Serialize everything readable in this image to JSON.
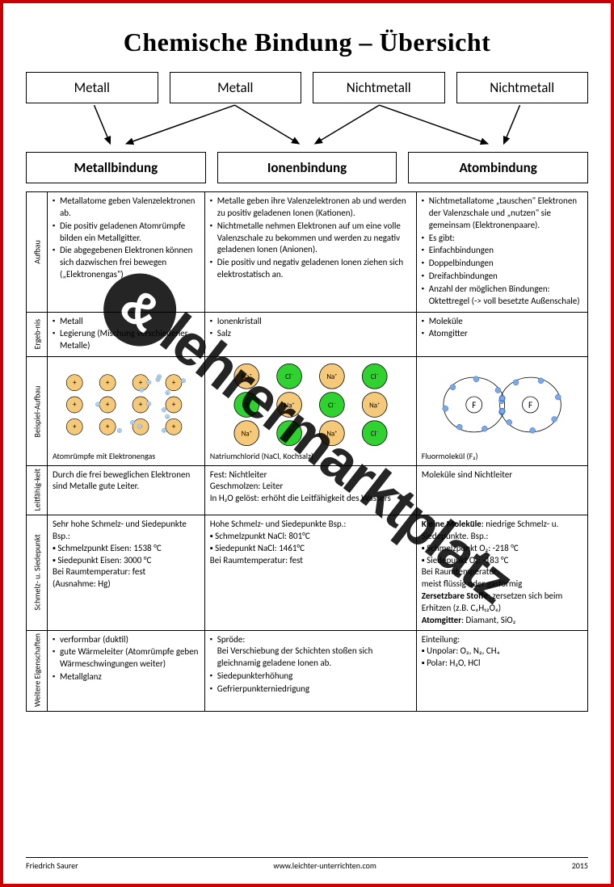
{
  "title": "Chemische Bindung – Übersicht",
  "topBoxes": [
    "Metall",
    "Metall",
    "Nichtmetall",
    "Nichtmetall"
  ],
  "bondBoxes": [
    "Metallbindung",
    "Ionenbindung",
    "Atombindung"
  ],
  "rows": {
    "aufbau": {
      "label": "Aufbau",
      "metall": [
        "Metallatome geben Valenzelektronen ab.",
        "Die positiv geladenen Atomrümpfe bilden ein Metallgitter.",
        "Die abgegebenen Elektronen können sich dazwischen frei bewegen („Elektronengas\")"
      ],
      "ionen": [
        "Metalle geben ihre Valenzelektronen ab und werden zu positiv geladenen Ionen (Kationen).",
        "Nichtmetalle nehmen Elektronen auf um eine volle Valenzschale zu bekommen und werden zu negativ geladenen Ionen (Anionen).",
        "Die positiv und negativ geladenen Ionen ziehen sich elektrostatisch an."
      ],
      "atom": [
        "Nichtmetallatome „tauschen\" Elektronen der Valenzschale und „nutzen\" sie gemeinsam (Elektronenpaare).",
        "Es gibt:",
        "Einfachbindungen",
        "Doppelbindungen",
        "Dreifachbindungen",
        "Anzahl der möglichen Bindungen: Oktettregel (-> voll besetzte Außenschale)"
      ]
    },
    "ergebnis": {
      "label": "Ergeb-nis",
      "metall": [
        "Metall",
        "Legierung (Mischung verschiedener Metalle)"
      ],
      "ionen": [
        "Ionenkristall",
        "Salz"
      ],
      "atom": [
        "Moleküle",
        "Atomgitter"
      ]
    },
    "beispiel": {
      "label": "Beispiel-Aufbau",
      "metall_caption": "Atomrümpfe mit Elektronengas",
      "ionen_caption": "Natriumchlorid (NaCl, Kochsalz)",
      "atom_caption": "Fluormolekül (F₂)",
      "colors": {
        "metal_ion": "#f4c97a",
        "electron": "#b8d4f0",
        "na_ion": "#f4c97a",
        "cl_ion": "#2fd22f",
        "f_electron": "#7aa8e8"
      }
    },
    "leitfaehigkeit": {
      "label": "Leitfähig-keit",
      "metall": "Durch die frei beweglichen Elektronen sind Metalle gute Leiter.",
      "ionen": "Fest: Nichtleiter\nGeschmolzen: Leiter\nIn H₂O gelöst: erhöht die Leitfähigkeit des Wassers",
      "atom": "Moleküle sind Nichtleiter"
    },
    "schmelz": {
      "label": "Schmelz- u. Siedepunkt",
      "metall": "Sehr hohe Schmelz- und Siedepunkte Bsp.:\n▪ Schmelzpunkt Eisen: 1538 °C\n▪ Siedepunkt Eisen: 3000 °C\nBei Raumtemperatur: fest\n(Ausnahme: Hg)",
      "ionen": "Hohe Schmelz- und Siedepunkte Bsp.:\n▪ Schmelzpunkt NaCl: 801°C\n▪ Siedepunkt NaCl: 1461°C\nBei Raumtemperatur: fest",
      "atom": "<b>Kleine Moleküle</b>: niedrige Schmelz- u. Siedepunkte. Bsp.:\n▪ Schmelzpunkt O₂: -218 °C\n▪ Siedepunkt O₂: -183 °C\nBei Raumtemperatur:\nmeist flüssig oder gasförmig\n<b>Zersetzbare Stoffe</b>: zersetzen sich beim Erhitzen (z.B. C₆H₁₂O₆)\n<b>Atomgitter</b>: Diamant, SiO₂"
    },
    "weitere": {
      "label": "Weitere Eigenschaften",
      "metall": [
        "verformbar (duktil)",
        "gute Wärmeleiter (Atomrümpfe geben Wärmeschwingungen weiter)",
        "Metallglanz"
      ],
      "ionen": [
        "Spröde:\nBei Verschiebung der Schichten stoßen sich gleichnamig geladene Ionen ab.",
        "Siedepunkterhöhung",
        "Gefrierpunkterniedrigung"
      ],
      "atom": "Einteilung:\n▪ Unpolar: O₂, N₂, CH₄\n▪ Polar: H₂O, HCl"
    }
  },
  "footer": {
    "author": "Friedrich Saurer",
    "url": "www.leichter-unterrichten.com",
    "year": "2015"
  },
  "watermark": "lehrermarktplatz"
}
